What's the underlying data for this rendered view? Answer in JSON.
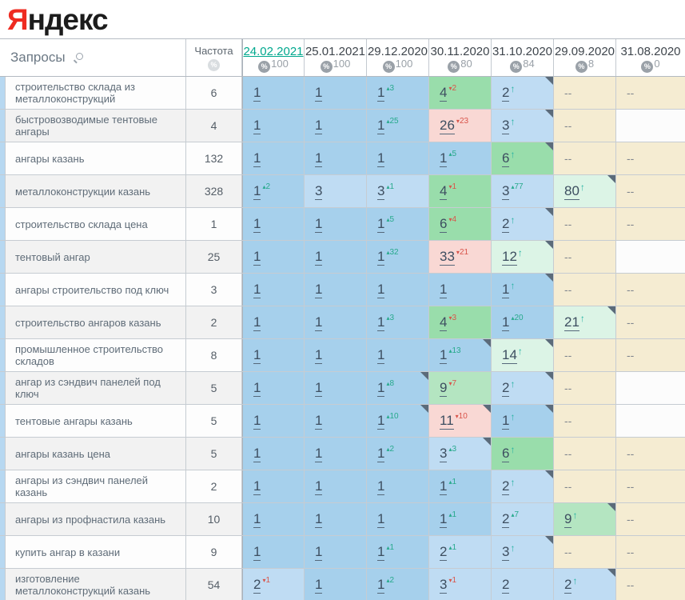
{
  "logo": {
    "brand_first_letter": "Я",
    "brand_rest": "ндекс"
  },
  "colors": {
    "accent_link": "#00a88e",
    "logo_red": "#ee2b21",
    "blue": "#a6d0ec",
    "blue_light": "#bfdcf3",
    "green": "#99ddab",
    "green_light": "#b4e5c1",
    "green_pale": "#dcf4e6",
    "pink": "#f9d8d4",
    "cream": "#f5ecd2",
    "empty": "#fcfcfc",
    "delta_up": "#27a98c",
    "delta_down": "#d9544a",
    "arrow_up": "#27b3a2",
    "note": "#5b6b7a"
  },
  "table": {
    "queries_header": "Запросы",
    "frequency_header": "Частота",
    "date_columns": [
      {
        "label": "24.02.2021",
        "metric": "100",
        "selected": true
      },
      {
        "label": "25.01.2021",
        "metric": "100",
        "selected": false
      },
      {
        "label": "29.12.2020",
        "metric": "100",
        "selected": false
      },
      {
        "label": "30.11.2020",
        "metric": "80",
        "selected": false
      },
      {
        "label": "31.10.2020",
        "metric": "84",
        "selected": false
      },
      {
        "label": "29.09.2020",
        "metric": "8",
        "selected": false
      },
      {
        "label": "31.08.2020",
        "metric": "0",
        "selected": false
      }
    ],
    "rows": [
      {
        "query": "строительство склада из металлоконструкций",
        "frequency": "6",
        "cells": [
          {
            "value": "1",
            "bg": "blue"
          },
          {
            "value": "1",
            "bg": "blue"
          },
          {
            "value": "1",
            "delta": "3",
            "delta_dir": "up",
            "bg": "blue"
          },
          {
            "value": "4",
            "delta": "2",
            "delta_dir": "down",
            "bg": "green"
          },
          {
            "value": "2",
            "arrow": true,
            "bg": "blue_light",
            "note": true
          },
          {
            "value": "--",
            "bg": "cream"
          },
          {
            "value": "--",
            "bg": "cream"
          }
        ]
      },
      {
        "query": "быстровозводимые тентовые ангары",
        "frequency": "4",
        "cells": [
          {
            "value": "1",
            "bg": "blue"
          },
          {
            "value": "1",
            "bg": "blue"
          },
          {
            "value": "1",
            "delta": "25",
            "delta_dir": "up",
            "bg": "blue"
          },
          {
            "value": "26",
            "delta": "23",
            "delta_dir": "down",
            "bg": "pink"
          },
          {
            "value": "3",
            "arrow": true,
            "bg": "blue_light",
            "note": true
          },
          {
            "value": "--",
            "bg": "cream"
          },
          {
            "value": "",
            "bg": "empty"
          }
        ]
      },
      {
        "query": "ангары казань",
        "frequency": "132",
        "cells": [
          {
            "value": "1",
            "bg": "blue"
          },
          {
            "value": "1",
            "bg": "blue"
          },
          {
            "value": "1",
            "bg": "blue"
          },
          {
            "value": "1",
            "delta": "5",
            "delta_dir": "up",
            "bg": "blue"
          },
          {
            "value": "6",
            "arrow": true,
            "bg": "green",
            "note": true
          },
          {
            "value": "--",
            "bg": "cream"
          },
          {
            "value": "--",
            "bg": "cream"
          }
        ]
      },
      {
        "query": "металлоконструкции казань",
        "frequency": "328",
        "cells": [
          {
            "value": "1",
            "delta": "2",
            "delta_dir": "up",
            "bg": "blue"
          },
          {
            "value": "3",
            "bg": "blue_light"
          },
          {
            "value": "3",
            "delta": "1",
            "delta_dir": "up",
            "bg": "blue_light"
          },
          {
            "value": "4",
            "delta": "1",
            "delta_dir": "down",
            "bg": "green"
          },
          {
            "value": "3",
            "delta": "77",
            "delta_dir": "up",
            "bg": "blue_light"
          },
          {
            "value": "80",
            "arrow": true,
            "bg": "green_pale",
            "note": true
          },
          {
            "value": "--",
            "bg": "cream"
          }
        ]
      },
      {
        "query": "строительство склада цена",
        "frequency": "1",
        "cells": [
          {
            "value": "1",
            "bg": "blue"
          },
          {
            "value": "1",
            "bg": "blue"
          },
          {
            "value": "1",
            "delta": "5",
            "delta_dir": "up",
            "bg": "blue"
          },
          {
            "value": "6",
            "delta": "4",
            "delta_dir": "down",
            "bg": "green"
          },
          {
            "value": "2",
            "arrow": true,
            "bg": "blue_light",
            "note": true
          },
          {
            "value": "--",
            "bg": "cream"
          },
          {
            "value": "--",
            "bg": "cream"
          }
        ]
      },
      {
        "query": "тентовый ангар",
        "frequency": "25",
        "cells": [
          {
            "value": "1",
            "bg": "blue"
          },
          {
            "value": "1",
            "bg": "blue"
          },
          {
            "value": "1",
            "delta": "32",
            "delta_dir": "up",
            "bg": "blue"
          },
          {
            "value": "33",
            "delta": "21",
            "delta_dir": "down",
            "bg": "pink"
          },
          {
            "value": "12",
            "arrow": true,
            "bg": "green_pale",
            "note": true
          },
          {
            "value": "--",
            "bg": "cream"
          },
          {
            "value": "",
            "bg": "empty"
          }
        ]
      },
      {
        "query": "ангары строительство под ключ",
        "frequency": "3",
        "cells": [
          {
            "value": "1",
            "bg": "blue"
          },
          {
            "value": "1",
            "bg": "blue"
          },
          {
            "value": "1",
            "bg": "blue"
          },
          {
            "value": "1",
            "bg": "blue"
          },
          {
            "value": "1",
            "arrow": true,
            "bg": "blue",
            "note": true
          },
          {
            "value": "--",
            "bg": "cream"
          },
          {
            "value": "--",
            "bg": "cream"
          }
        ]
      },
      {
        "query": "строительство ангаров казань",
        "frequency": "2",
        "cells": [
          {
            "value": "1",
            "bg": "blue"
          },
          {
            "value": "1",
            "bg": "blue"
          },
          {
            "value": "1",
            "delta": "3",
            "delta_dir": "up",
            "bg": "blue"
          },
          {
            "value": "4",
            "delta": "3",
            "delta_dir": "down",
            "bg": "green"
          },
          {
            "value": "1",
            "delta": "20",
            "delta_dir": "up",
            "bg": "blue"
          },
          {
            "value": "21",
            "arrow": true,
            "bg": "green_pale",
            "note": true
          },
          {
            "value": "--",
            "bg": "cream"
          }
        ]
      },
      {
        "query": "промышленное строительство складов",
        "frequency": "8",
        "cells": [
          {
            "value": "1",
            "bg": "blue"
          },
          {
            "value": "1",
            "bg": "blue"
          },
          {
            "value": "1",
            "bg": "blue"
          },
          {
            "value": "1",
            "delta": "13",
            "delta_dir": "up",
            "bg": "blue",
            "note": true
          },
          {
            "value": "14",
            "arrow": true,
            "bg": "green_pale",
            "note": true
          },
          {
            "value": "--",
            "bg": "cream"
          },
          {
            "value": "--",
            "bg": "cream"
          }
        ]
      },
      {
        "query": "ангар из сэндвич панелей под ключ",
        "frequency": "5",
        "cells": [
          {
            "value": "1",
            "bg": "blue"
          },
          {
            "value": "1",
            "bg": "blue"
          },
          {
            "value": "1",
            "delta": "8",
            "delta_dir": "up",
            "bg": "blue",
            "note": true
          },
          {
            "value": "9",
            "delta": "7",
            "delta_dir": "down",
            "bg": "green_light"
          },
          {
            "value": "2",
            "arrow": true,
            "bg": "blue_light",
            "note": true
          },
          {
            "value": "--",
            "bg": "cream"
          },
          {
            "value": "",
            "bg": "empty"
          }
        ]
      },
      {
        "query": "тентовые ангары казань",
        "frequency": "5",
        "cells": [
          {
            "value": "1",
            "bg": "blue"
          },
          {
            "value": "1",
            "bg": "blue"
          },
          {
            "value": "1",
            "delta": "10",
            "delta_dir": "up",
            "bg": "blue",
            "note": true
          },
          {
            "value": "11",
            "delta": "10",
            "delta_dir": "down",
            "bg": "pink",
            "note": true
          },
          {
            "value": "1",
            "arrow": true,
            "bg": "blue",
            "note": true
          },
          {
            "value": "--",
            "bg": "cream"
          },
          {
            "value": "",
            "bg": "empty"
          }
        ]
      },
      {
        "query": "ангары казань цена",
        "frequency": "5",
        "cells": [
          {
            "value": "1",
            "bg": "blue"
          },
          {
            "value": "1",
            "bg": "blue"
          },
          {
            "value": "1",
            "delta": "2",
            "delta_dir": "up",
            "bg": "blue"
          },
          {
            "value": "3",
            "delta": "3",
            "delta_dir": "up",
            "bg": "blue_light",
            "note": true
          },
          {
            "value": "6",
            "arrow": true,
            "bg": "green"
          },
          {
            "value": "--",
            "bg": "cream"
          },
          {
            "value": "--",
            "bg": "cream"
          }
        ]
      },
      {
        "query": "ангары из сэндвич панелей казань",
        "frequency": "2",
        "cells": [
          {
            "value": "1",
            "bg": "blue"
          },
          {
            "value": "1",
            "bg": "blue"
          },
          {
            "value": "1",
            "bg": "blue"
          },
          {
            "value": "1",
            "delta": "1",
            "delta_dir": "up",
            "bg": "blue"
          },
          {
            "value": "2",
            "arrow": true,
            "bg": "blue_light",
            "note": true
          },
          {
            "value": "--",
            "bg": "cream"
          },
          {
            "value": "--",
            "bg": "cream"
          }
        ]
      },
      {
        "query": "ангары из профнастила казань",
        "frequency": "10",
        "cells": [
          {
            "value": "1",
            "bg": "blue"
          },
          {
            "value": "1",
            "bg": "blue"
          },
          {
            "value": "1",
            "bg": "blue"
          },
          {
            "value": "1",
            "delta": "1",
            "delta_dir": "up",
            "bg": "blue"
          },
          {
            "value": "2",
            "delta": "7",
            "delta_dir": "up",
            "bg": "blue_light"
          },
          {
            "value": "9",
            "arrow": true,
            "bg": "green_light",
            "note": true
          },
          {
            "value": "--",
            "bg": "cream"
          }
        ]
      },
      {
        "query": "купить ангар в казани",
        "frequency": "9",
        "cells": [
          {
            "value": "1",
            "bg": "blue"
          },
          {
            "value": "1",
            "bg": "blue"
          },
          {
            "value": "1",
            "delta": "1",
            "delta_dir": "up",
            "bg": "blue"
          },
          {
            "value": "2",
            "delta": "1",
            "delta_dir": "up",
            "bg": "blue_light"
          },
          {
            "value": "3",
            "arrow": true,
            "bg": "blue_light",
            "note": true
          },
          {
            "value": "--",
            "bg": "cream"
          },
          {
            "value": "--",
            "bg": "cream"
          }
        ]
      },
      {
        "query": "изготовление металлоконструкций казань",
        "frequency": "54",
        "cells": [
          {
            "value": "2",
            "delta": "1",
            "delta_dir": "down",
            "bg": "blue_light"
          },
          {
            "value": "1",
            "bg": "blue"
          },
          {
            "value": "1",
            "delta": "2",
            "delta_dir": "up",
            "bg": "blue"
          },
          {
            "value": "3",
            "delta": "1",
            "delta_dir": "down",
            "bg": "blue_light"
          },
          {
            "value": "2",
            "bg": "blue_light"
          },
          {
            "value": "2",
            "arrow": true,
            "bg": "blue_light",
            "note": true
          },
          {
            "value": "--",
            "bg": "cream"
          }
        ]
      }
    ]
  }
}
